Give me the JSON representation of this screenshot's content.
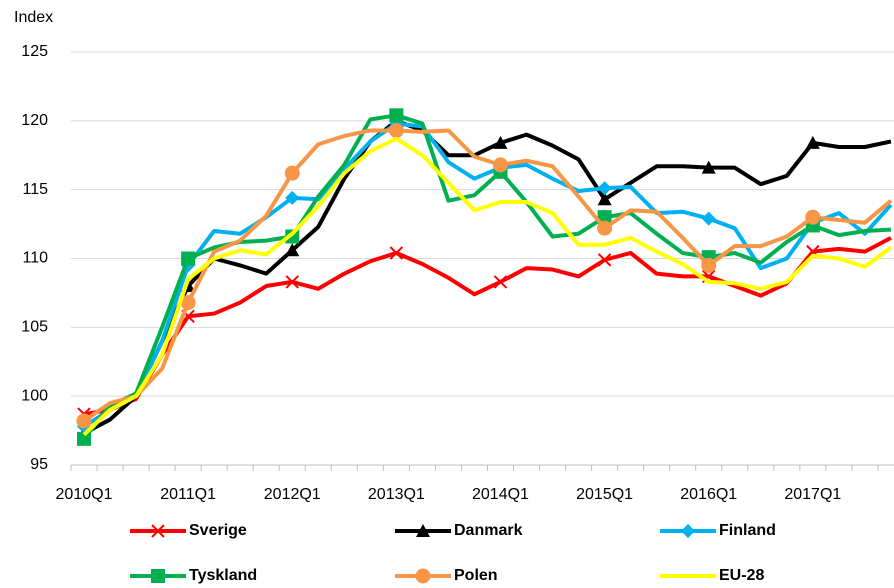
{
  "chart_data": {
    "type": "line",
    "ylabel": "Index",
    "categories": [
      "2010Q1",
      null,
      null,
      null,
      "2011Q1",
      null,
      null,
      null,
      "2012Q1",
      null,
      null,
      null,
      "2013Q1",
      null,
      null,
      null,
      "2014Q1",
      null,
      null,
      null,
      "2015Q1",
      null,
      null,
      null,
      "2016Q1",
      null,
      null,
      null,
      "2017Q1",
      null,
      null,
      null
    ],
    "ylim": [
      95,
      125
    ],
    "yticks": [
      95,
      100,
      105,
      110,
      115,
      120,
      125
    ],
    "grid": true,
    "series": [
      {
        "name": "Sverige",
        "color": "#ff0000",
        "marker": "x",
        "values": [
          98.7,
          99.0,
          99.8,
          103.0,
          105.8,
          106.0,
          106.8,
          108.0,
          108.3,
          107.8,
          108.9,
          109.8,
          110.4,
          109.6,
          108.6,
          107.4,
          108.3,
          109.3,
          109.2,
          108.7,
          109.9,
          110.4,
          108.9,
          108.7,
          108.7,
          108.0,
          107.3,
          108.2,
          110.5,
          110.7,
          110.5,
          111.5
        ]
      },
      {
        "name": "Danmark",
        "color": "#000000",
        "marker": "triangle",
        "values": [
          97.3,
          98.3,
          100.0,
          104.0,
          108.0,
          110.0,
          109.5,
          108.9,
          110.6,
          112.3,
          115.8,
          118.5,
          120.0,
          119.3,
          117.5,
          117.5,
          118.4,
          119.0,
          118.2,
          117.2,
          114.3,
          115.5,
          116.7,
          116.7,
          116.6,
          116.6,
          115.4,
          116.0,
          118.4,
          118.1,
          118.1,
          118.5
        ]
      },
      {
        "name": "Finland",
        "color": "#00b0f0",
        "marker": "diamond",
        "values": [
          97.8,
          99.0,
          100.0,
          104.0,
          109.5,
          112.0,
          111.8,
          113.0,
          114.4,
          114.3,
          116.5,
          118.5,
          119.8,
          119.6,
          117.0,
          115.8,
          116.6,
          116.8,
          115.8,
          114.9,
          115.1,
          115.2,
          113.3,
          113.4,
          112.9,
          112.2,
          109.3,
          110.0,
          112.6,
          113.3,
          111.8,
          113.9
        ]
      },
      {
        "name": "Tyskland",
        "color": "#00b050",
        "marker": "square",
        "values": [
          96.9,
          99.3,
          100.2,
          105.0,
          110.0,
          110.8,
          111.2,
          111.3,
          111.6,
          114.5,
          116.8,
          120.1,
          120.4,
          119.8,
          114.2,
          114.6,
          116.3,
          114.1,
          111.6,
          111.8,
          113.0,
          113.3,
          111.8,
          110.4,
          110.1,
          110.4,
          109.7,
          111.2,
          112.4,
          111.7,
          112.0,
          112.1
        ]
      },
      {
        "name": "Polen",
        "color": "#f79646",
        "marker": "circle",
        "values": [
          98.2,
          99.5,
          100.0,
          102.0,
          106.8,
          110.5,
          111.3,
          113.1,
          116.2,
          118.3,
          118.9,
          119.3,
          119.3,
          119.2,
          119.3,
          117.4,
          116.8,
          117.1,
          116.7,
          114.5,
          112.2,
          113.5,
          113.4,
          111.5,
          109.5,
          110.9,
          110.9,
          111.6,
          113.0,
          112.8,
          112.6,
          114.2
        ]
      },
      {
        "name": "EU-28",
        "color": "#ffff00",
        "marker": "none",
        "values": [
          97.2,
          99.0,
          100.0,
          103.0,
          108.5,
          110.0,
          110.6,
          110.3,
          111.8,
          113.8,
          116.2,
          117.8,
          118.7,
          117.5,
          115.5,
          113.5,
          114.1,
          114.1,
          113.3,
          111.0,
          111.0,
          111.5,
          110.5,
          109.6,
          108.3,
          108.2,
          107.8,
          108.3,
          110.2,
          110.0,
          109.4,
          110.8
        ]
      }
    ]
  }
}
